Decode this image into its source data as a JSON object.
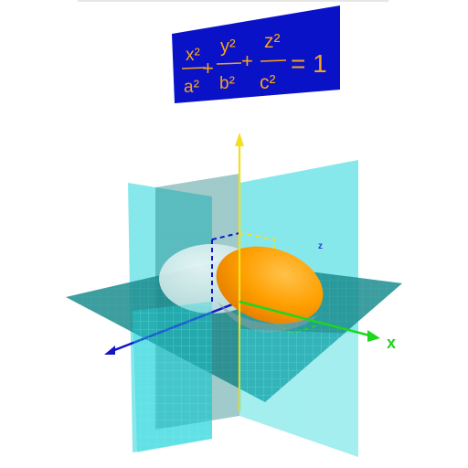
{
  "equation": {
    "x_term": "x²",
    "a_term": "a²",
    "y_term": "y²",
    "b_term": "b²",
    "z_term": "z²",
    "c_term": "c²",
    "plus_1": "+",
    "plus_2": "+",
    "rhs": "= 1"
  },
  "axes": {
    "x_label": "x",
    "z_label": "z"
  },
  "colors": {
    "banner_bg": "#0a12c8",
    "equation_text": "#f7a21c",
    "x_axis": "#1fd61f",
    "y_axis": "#1414c8",
    "z_axis": "#f0e020",
    "plane_cyan": "#22d6dc",
    "plane_teal": "#1a8a8c",
    "ellipsoid_orange": "#ff9a00",
    "ellipsoid_pale": "#cfe6e6"
  }
}
